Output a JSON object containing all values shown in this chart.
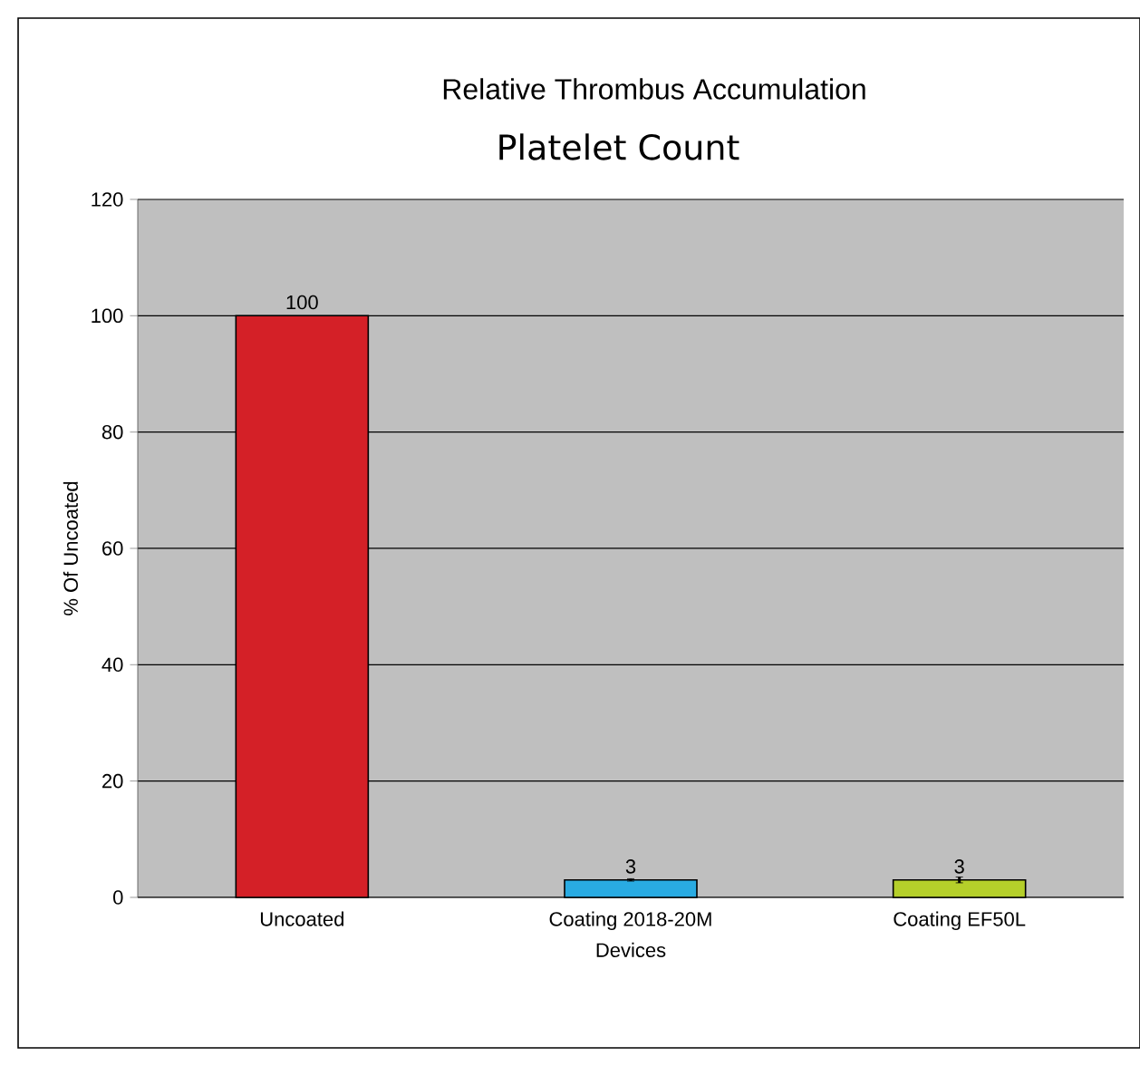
{
  "chart_data": {
    "type": "bar",
    "title": "Relative Thrombus Accumulation",
    "subtitle": "Platelet Count",
    "xlabel": "Devices",
    "ylabel": "% Of Uncoated",
    "categories": [
      "Uncoated",
      "Coating 2018-20M",
      "Coating EF50L"
    ],
    "values": [
      100,
      3,
      3
    ],
    "colors": [
      "#d42027",
      "#29abe2",
      "#b5cf2a"
    ],
    "errors": [
      null,
      0.2,
      0.5
    ],
    "ylim": [
      0,
      120
    ],
    "yticks": [
      0,
      20,
      40,
      60,
      80,
      100,
      120
    ],
    "grid": "y",
    "data_labels": true
  }
}
